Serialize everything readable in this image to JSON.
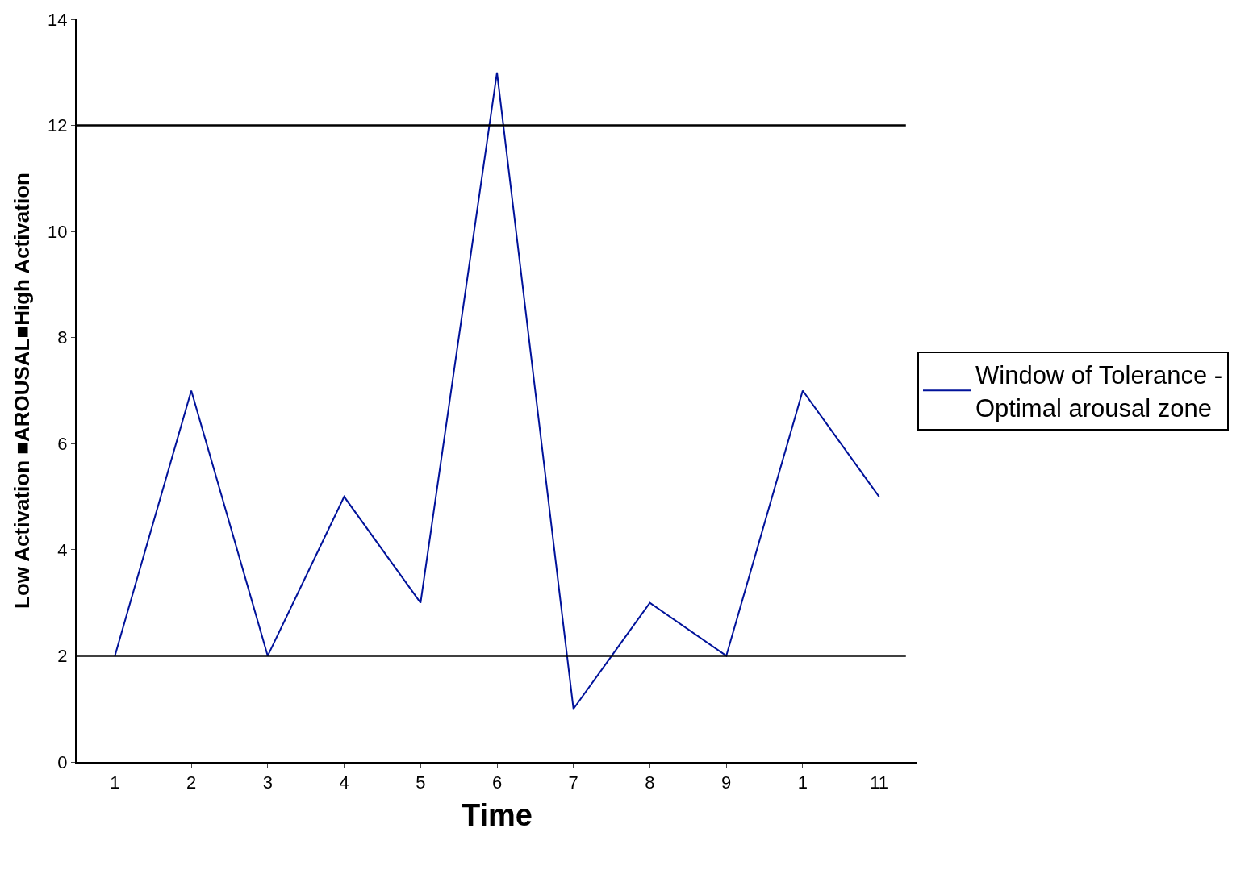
{
  "chart_data": {
    "type": "line",
    "xlabel": "Time",
    "ylabel": "Low Activation ■AROUSAL■High Activation",
    "categories": [
      "1",
      "2",
      "3",
      "4",
      "5",
      "6",
      "7",
      "8",
      "9",
      "1",
      "11"
    ],
    "series": [
      {
        "name": "Window of Tolerance - Optimal arousal zone",
        "color": "#00129a",
        "values": [
          2,
          7,
          2,
          5,
          3,
          13,
          1,
          3,
          2,
          7,
          5
        ]
      }
    ],
    "ylim": [
      0,
      14
    ],
    "yticks": [
      0,
      2,
      4,
      6,
      8,
      10,
      12,
      14
    ],
    "ref_lines": [
      {
        "axis": "y",
        "value": 12,
        "color": "#000000"
      },
      {
        "axis": "y",
        "value": 2,
        "color": "#000000"
      }
    ],
    "legend": "right",
    "marker": "none",
    "line_style": "solid"
  }
}
